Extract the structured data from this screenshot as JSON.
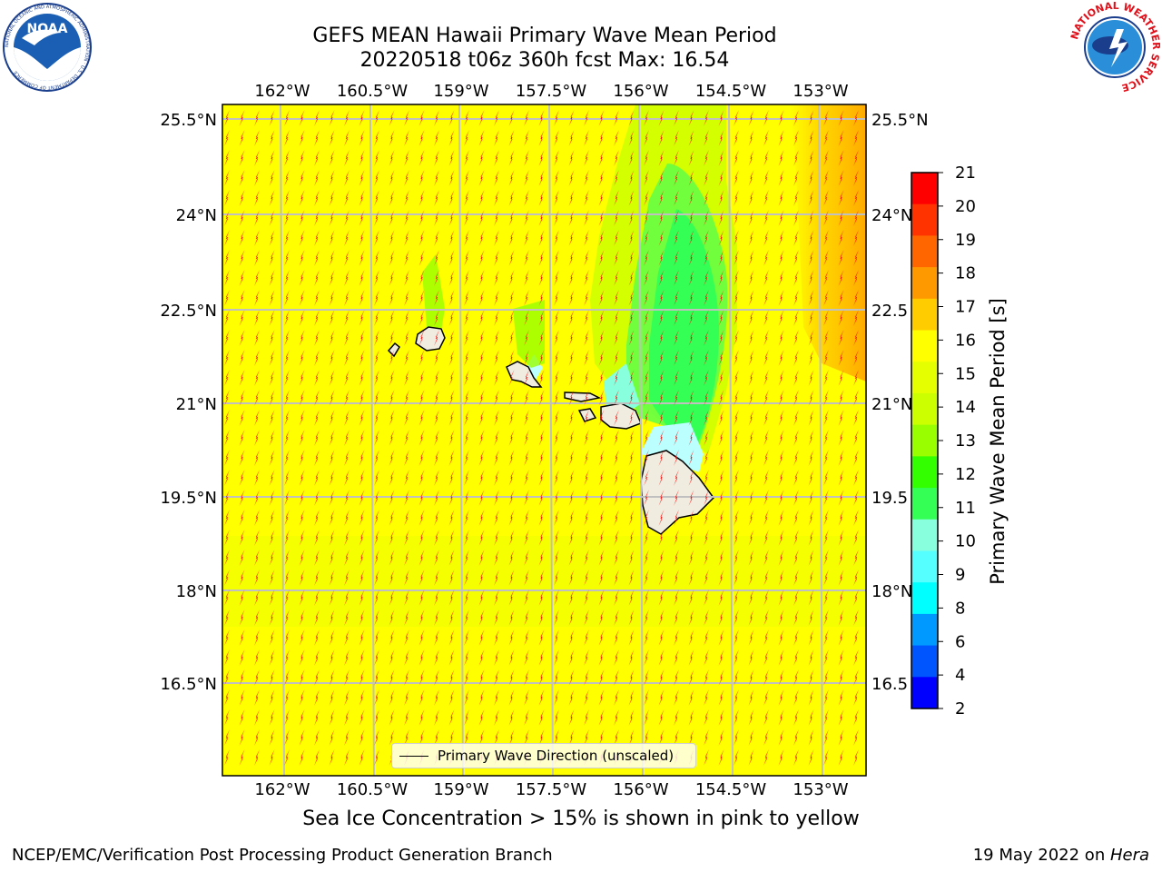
{
  "title": {
    "line1": "GEFS MEAN Hawaii Primary Wave Mean Period",
    "line2": "20220518 t06z 360h fcst   Max: 16.54"
  },
  "axes": {
    "lon_ticks": [
      "162°W",
      "160.5°W",
      "159°W",
      "157.5°W",
      "156°W",
      "154.5°W",
      "153°W"
    ],
    "lat_ticks": [
      "25.5°N",
      "24°N",
      "22.5°N",
      "21°N",
      "19.5°N",
      "18°N",
      "16.5°N"
    ],
    "lat_ticks_right": [
      "25.5°N",
      "24°N",
      "22.5",
      "21°N",
      "19.5",
      "18°N",
      "16.5"
    ]
  },
  "colorbar": {
    "label": "Primary Wave Mean Period [s]",
    "tick_labels": [
      "21",
      "20",
      "19",
      "18",
      "17",
      "16",
      "15",
      "14",
      "13",
      "12",
      "11",
      "10",
      "9",
      "8",
      "6",
      "4",
      "2"
    ],
    "colors": [
      "#ff0000",
      "#ff3300",
      "#ff6600",
      "#ff9900",
      "#ffcc00",
      "#ffff00",
      "#e6ff00",
      "#ccff00",
      "#99ff00",
      "#33ff00",
      "#33ff55",
      "#88ffdd",
      "#55ffff",
      "#00ffff",
      "#0099ff",
      "#0055ff",
      "#0000ff"
    ]
  },
  "legend": {
    "label": "Primary Wave Direction (unscaled)"
  },
  "caption": "Sea Ice Concentration > 15% is shown in pink to yellow",
  "footer": {
    "left": "NCEP/EMC/Verification Post Processing Product Generation Branch",
    "right_date": "19 May 2022 on ",
    "right_host": "Hera"
  },
  "logos": {
    "noaa_text": "NOAA",
    "noaa_ring": "NATIONAL OCEANIC AND ATMOSPHERIC ADMINISTRATION · U.S. DEPARTMENT OF COMMERCE",
    "nws_ring": "NATIONAL WEATHER SERVICE"
  },
  "colors": {
    "field_base": "#ffff00",
    "arrow": "#ff0000",
    "land": "#f0ede0",
    "grid": "#c0c0c0"
  }
}
